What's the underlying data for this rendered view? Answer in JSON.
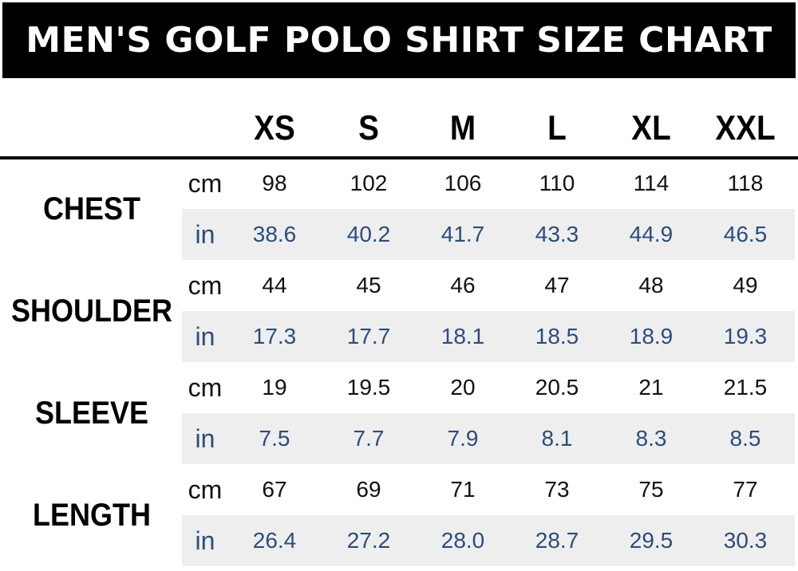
{
  "title": "MEN'S GOLF POLO SHIRT SIZE CHART",
  "sizes": [
    "XS",
    "S",
    "M",
    "L",
    "XL",
    "XXL"
  ],
  "units": {
    "cm": "cm",
    "in": "in"
  },
  "measurements": [
    {
      "label": "CHEST",
      "cm": [
        "98",
        "102",
        "106",
        "110",
        "114",
        "118"
      ],
      "in": [
        "38.6",
        "40.2",
        "41.7",
        "43.3",
        "44.9",
        "46.5"
      ]
    },
    {
      "label": "SHOULDER",
      "cm": [
        "44",
        "45",
        "46",
        "47",
        "48",
        "49"
      ],
      "in": [
        "17.3",
        "17.7",
        "18.1",
        "18.5",
        "18.9",
        "19.3"
      ]
    },
    {
      "label": "SLEEVE",
      "cm": [
        "19",
        "19.5",
        "20",
        "20.5",
        "21",
        "21.5"
      ],
      "in": [
        "7.5",
        "7.7",
        "7.9",
        "8.1",
        "8.3",
        "8.5"
      ]
    },
    {
      "label": "LENGTH",
      "cm": [
        "67",
        "69",
        "71",
        "73",
        "75",
        "77"
      ],
      "in": [
        "26.4",
        "27.2",
        "28.0",
        "28.7",
        "29.5",
        "30.3"
      ]
    }
  ],
  "colors": {
    "header_bg": "#000000",
    "title_text": "#ffffff",
    "inch_values": "#2c4d7c",
    "shaded_row": "#eeeeee"
  }
}
